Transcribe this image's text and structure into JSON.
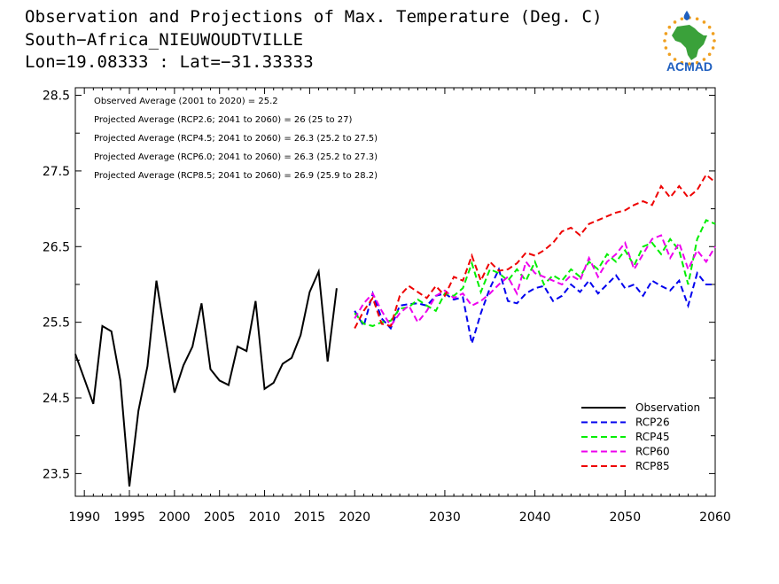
{
  "title": {
    "line1": "Observation and Projections of Max. Temperature (Deg. C)",
    "line2": "South−Africa_NIEUWOUDTVILLE",
    "line3": "Lon=19.08333 : Lat=−31.33333"
  },
  "logo": {
    "text": "ACMAD",
    "colors": {
      "africa": "#3aa13a",
      "ring": "#f0a020",
      "drop": "#1f5fbf",
      "text": "#1f5fbf"
    }
  },
  "annotations": [
    "Observed Average (2001 to 2020) = 25.2",
    "Projected Average (RCP2.6; 2041 to 2060) = 26 (25 to 27)",
    "Projected Average (RCP4.5; 2041 to 2060) = 26.3 (25.2 to 27.5)",
    "Projected Average (RCP6.0; 2041 to 2060) = 26.3 (25.2 to 27.3)",
    "Projected Average (RCP8.5; 2041 to 2060) = 26.9 (25.9 to 28.2)"
  ],
  "chart_data": {
    "type": "line",
    "xlim": [
      1989,
      2060
    ],
    "ylim": [
      23.2,
      28.6
    ],
    "x_ticks": [
      {
        "value": 1990,
        "label": "1990"
      },
      {
        "value": 1995,
        "label": "1995"
      },
      {
        "value": 2000,
        "label": "2000"
      },
      {
        "value": 2005,
        "label": "2005"
      },
      {
        "value": 2010,
        "label": "2010"
      },
      {
        "value": 2015,
        "label": "2015"
      },
      {
        "value": 2020,
        "label": "2020"
      },
      {
        "value": 2030,
        "label": "2030"
      },
      {
        "value": 2040,
        "label": "2040"
      },
      {
        "value": 2050,
        "label": "2050"
      },
      {
        "value": 2060,
        "label": "2060"
      }
    ],
    "y_ticks": [
      {
        "value": 23.5,
        "label": "23.5"
      },
      {
        "value": 24.5,
        "label": "24.5"
      },
      {
        "value": 25.5,
        "label": "25.5"
      },
      {
        "value": 26.5,
        "label": "26.5"
      },
      {
        "value": 27.5,
        "label": "27.5"
      },
      {
        "value": 28.5,
        "label": "28.5"
      }
    ],
    "legend_position": "bottom-right",
    "series": [
      {
        "name": "Observation",
        "color": "#000000",
        "dash": "solid",
        "x": [
          1989,
          1990,
          1991,
          1992,
          1993,
          1994,
          1995,
          1996,
          1997,
          1998,
          1999,
          2000,
          2001,
          2002,
          2003,
          2004,
          2005,
          2006,
          2007,
          2008,
          2009,
          2010,
          2011,
          2012,
          2013,
          2014,
          2015,
          2016,
          2017,
          2018,
          2019,
          2020
        ],
        "y": [
          25.08,
          24.75,
          24.42,
          25.45,
          25.38,
          24.73,
          23.33,
          24.33,
          24.92,
          26.05,
          25.3,
          24.57,
          24.93,
          25.18,
          25.75,
          24.88,
          24.73,
          24.67,
          25.18,
          25.12,
          25.78,
          24.62,
          24.7,
          24.95,
          25.03,
          25.33,
          25.9,
          26.17,
          24.98,
          25.95,
          null,
          null
        ]
      },
      {
        "name": "RCP26",
        "color": "#0000ee",
        "dash": "dashed",
        "x": [
          2020,
          2021,
          2022,
          2023,
          2024,
          2025,
          2026,
          2027,
          2028,
          2029,
          2030,
          2031,
          2032,
          2033,
          2034,
          2035,
          2036,
          2037,
          2038,
          2039,
          2040,
          2041,
          2042,
          2043,
          2044,
          2045,
          2046,
          2047,
          2048,
          2049,
          2050,
          2051,
          2052,
          2053,
          2054,
          2055,
          2056,
          2057,
          2058,
          2059,
          2060
        ],
        "y": [
          25.65,
          25.45,
          25.88,
          25.55,
          25.42,
          25.72,
          25.74,
          25.75,
          25.72,
          25.85,
          25.88,
          25.8,
          25.83,
          25.22,
          25.62,
          25.95,
          26.2,
          25.78,
          25.75,
          25.88,
          25.95,
          25.98,
          25.78,
          25.85,
          26.0,
          25.9,
          26.05,
          25.88,
          26.0,
          26.12,
          25.95,
          26.0,
          25.85,
          26.05,
          25.98,
          25.92,
          26.05,
          25.72,
          26.15,
          26.0,
          26.0
        ]
      },
      {
        "name": "RCP45",
        "color": "#00ee00",
        "dash": "dashed",
        "x": [
          2020,
          2021,
          2022,
          2023,
          2024,
          2025,
          2026,
          2027,
          2028,
          2029,
          2030,
          2031,
          2032,
          2033,
          2034,
          2035,
          2036,
          2037,
          2038,
          2039,
          2040,
          2041,
          2042,
          2043,
          2044,
          2045,
          2046,
          2047,
          2048,
          2049,
          2050,
          2051,
          2052,
          2053,
          2054,
          2055,
          2056,
          2057,
          2058,
          2059,
          2060
        ],
        "y": [
          25.62,
          25.48,
          25.45,
          25.5,
          25.52,
          25.68,
          25.7,
          25.8,
          25.72,
          25.65,
          25.88,
          25.85,
          25.95,
          26.28,
          25.9,
          26.2,
          26.15,
          26.05,
          26.2,
          26.05,
          26.3,
          26.0,
          26.12,
          26.05,
          26.2,
          26.1,
          26.3,
          26.2,
          26.4,
          26.3,
          26.45,
          26.25,
          26.5,
          26.55,
          26.4,
          26.6,
          26.45,
          26.0,
          26.6,
          26.85,
          26.8
        ]
      },
      {
        "name": "RCP60",
        "color": "#ee00ee",
        "dash": "dashed",
        "x": [
          2020,
          2021,
          2022,
          2023,
          2024,
          2025,
          2026,
          2027,
          2028,
          2029,
          2030,
          2031,
          2032,
          2033,
          2034,
          2035,
          2036,
          2037,
          2038,
          2039,
          2040,
          2041,
          2042,
          2043,
          2044,
          2045,
          2046,
          2047,
          2048,
          2049,
          2050,
          2051,
          2052,
          2053,
          2054,
          2055,
          2056,
          2057,
          2058,
          2059,
          2060
        ],
        "y": [
          25.55,
          25.75,
          25.88,
          25.65,
          25.45,
          25.62,
          25.72,
          25.5,
          25.65,
          25.85,
          25.92,
          25.82,
          25.88,
          25.72,
          25.78,
          25.88,
          26.0,
          26.1,
          25.88,
          26.3,
          26.15,
          26.1,
          26.05,
          26.0,
          26.12,
          26.05,
          26.35,
          26.1,
          26.3,
          26.4,
          26.55,
          26.2,
          26.4,
          26.6,
          26.65,
          26.35,
          26.55,
          26.2,
          26.45,
          26.3,
          26.5
        ]
      },
      {
        "name": "RCP85",
        "color": "#ee0000",
        "dash": "dashed",
        "x": [
          2020,
          2021,
          2022,
          2023,
          2024,
          2025,
          2026,
          2027,
          2028,
          2029,
          2030,
          2031,
          2032,
          2033,
          2034,
          2035,
          2036,
          2037,
          2038,
          2039,
          2040,
          2041,
          2042,
          2043,
          2044,
          2045,
          2046,
          2047,
          2048,
          2049,
          2050,
          2051,
          2052,
          2053,
          2054,
          2055,
          2056,
          2057,
          2058,
          2059,
          2060
        ],
        "y": [
          25.42,
          25.65,
          25.82,
          25.48,
          25.45,
          25.85,
          25.98,
          25.9,
          25.82,
          25.98,
          25.85,
          26.1,
          26.05,
          26.38,
          26.05,
          26.3,
          26.18,
          26.2,
          26.28,
          26.42,
          26.38,
          26.45,
          26.55,
          26.7,
          26.75,
          26.65,
          26.8,
          26.85,
          26.9,
          26.95,
          26.98,
          27.05,
          27.1,
          27.05,
          27.3,
          27.15,
          27.3,
          27.15,
          27.25,
          27.45,
          27.35
        ]
      }
    ]
  }
}
